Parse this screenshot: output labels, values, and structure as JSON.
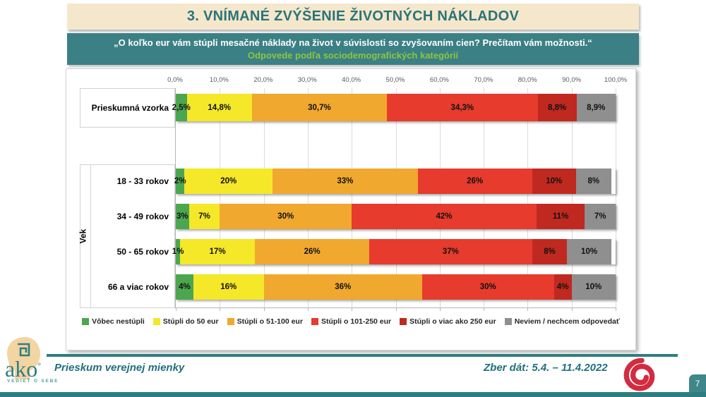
{
  "title": "3. VNÍMANÉ ZVÝŠENIE ŽIVOTNÝCH NÁKLADOV",
  "subtitle": {
    "line1": "„O koľko eur vám stúpli mesačné náklady na život v súvislosti so zvyšovaním cien? Prečítam vám možnosti.“",
    "line2": "Odpovede podľa sociodemografických kategórií"
  },
  "chart_data": {
    "type": "bar",
    "stacked": true,
    "orientation": "horizontal",
    "grid": true,
    "legend_position": "bottom",
    "x_range": [
      0,
      100
    ],
    "x_ticks": [
      "0,0%",
      "10,0%",
      "20,0%",
      "30,0%",
      "40,0%",
      "50,0%",
      "60,0%",
      "70,0%",
      "80,0%",
      "90,0%",
      "100,0%"
    ],
    "group_axis_label": "Vek",
    "categories": [
      "Prieskumná vzorka",
      "18 - 33 rokov",
      "34 - 49 rokov",
      "50 - 65 rokov",
      "66 a viac rokov"
    ],
    "series": [
      {
        "name": "Vôbec nestúpli",
        "color": "#4CA64F",
        "values": [
          2.5,
          2,
          3,
          1,
          4
        ],
        "labels": [
          "2,5%",
          "2%",
          "3%",
          "1%",
          "4%"
        ]
      },
      {
        "name": "Stúpli do 50 eur",
        "color": "#F4E829",
        "values": [
          14.8,
          20,
          7,
          17,
          16
        ],
        "labels": [
          "14,8%",
          "20%",
          "7%",
          "17%",
          "16%"
        ]
      },
      {
        "name": "Stúpli o 51-100 eur",
        "color": "#F0A82E",
        "values": [
          30.7,
          33,
          30,
          26,
          36
        ],
        "labels": [
          "30,7%",
          "33%",
          "30%",
          "26%",
          "36%"
        ]
      },
      {
        "name": "Stúpli o 101-250 eur",
        "color": "#E63B2D",
        "values": [
          34.3,
          26,
          42,
          37,
          30
        ],
        "labels": [
          "34,3%",
          "26%",
          "42%",
          "37%",
          "30%"
        ]
      },
      {
        "name": "Stúpli o viac ako 250 eur",
        "color": "#C0291F",
        "values": [
          8.8,
          10,
          11,
          8,
          4
        ],
        "labels": [
          "8,8%",
          "10%",
          "11%",
          "8%",
          "4%"
        ]
      },
      {
        "name": "Neviem / nechcem odpovedať",
        "color": "#8F8F8F",
        "values": [
          8.9,
          8,
          7,
          10,
          10
        ],
        "labels": [
          "8,9%",
          "8%",
          "7%",
          "10%",
          "10%"
        ]
      }
    ]
  },
  "footer": {
    "left_text": "Prieskum verejnej mienky",
    "date_text": "Zber dát: 5.4. – 11.4.2022",
    "page_number": "7"
  },
  "logo": {
    "wordmark": "ako",
    "slogan": "VEDIEŤ O SEBE"
  }
}
